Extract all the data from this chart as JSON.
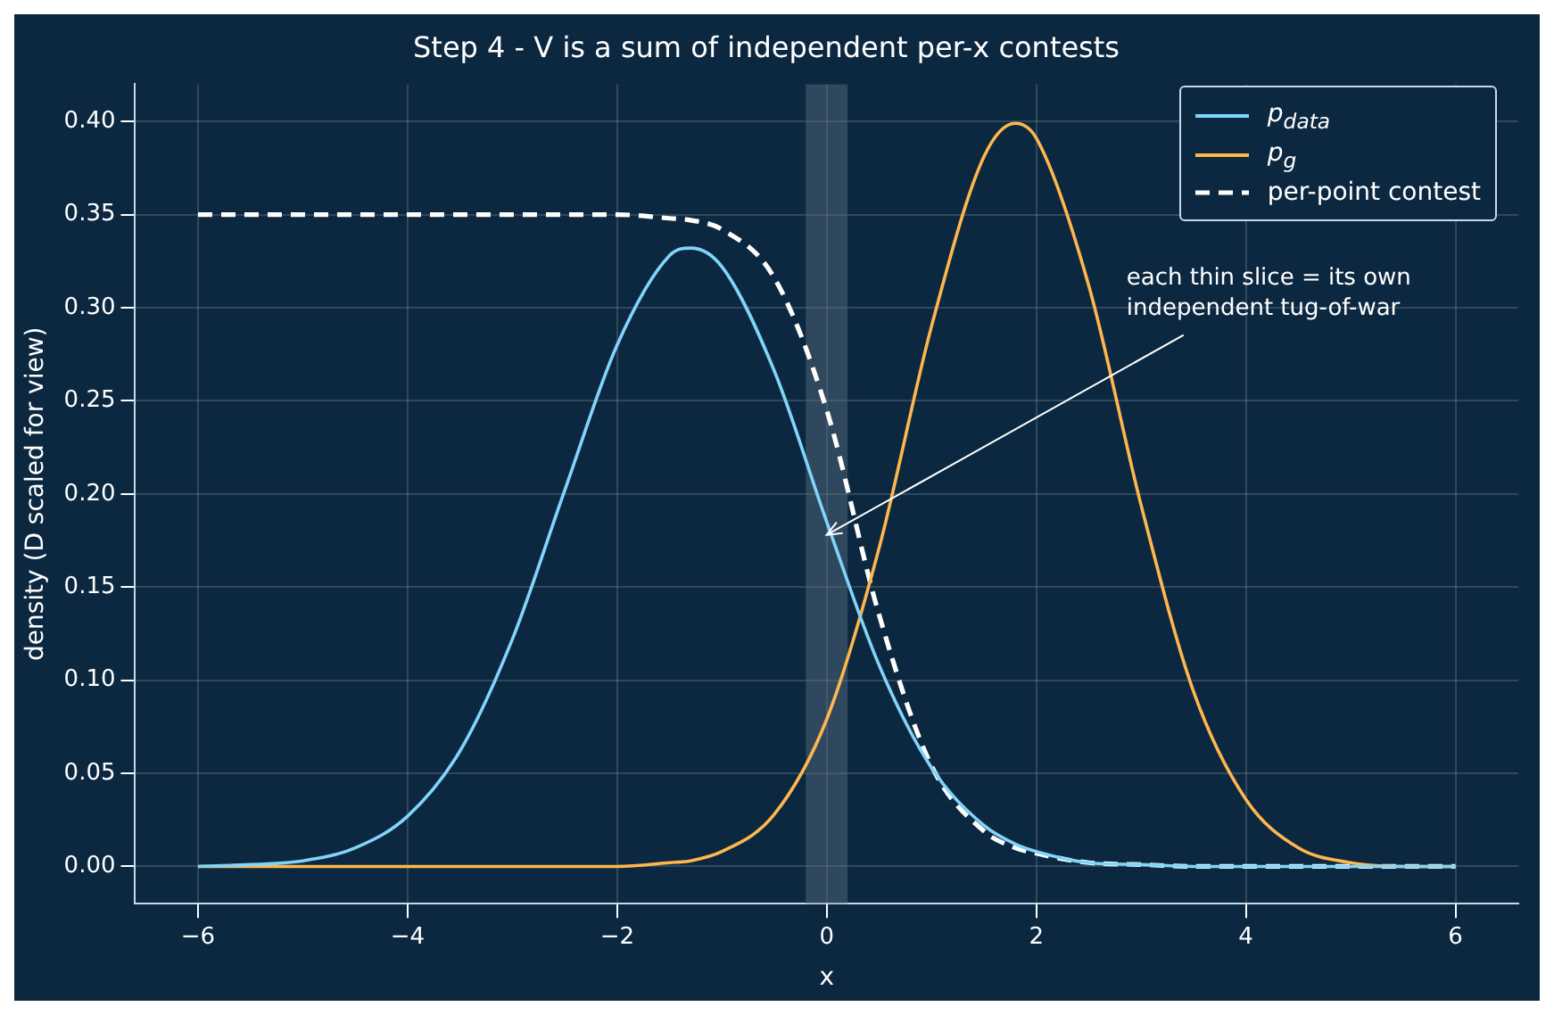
{
  "chart_data": {
    "type": "line",
    "title": "Step 4 - V is a sum of independent per-x contests",
    "xlabel": "x",
    "ylabel": "density (D scaled for view)",
    "x": [
      -6,
      -5.5,
      -5,
      -4.5,
      -4,
      -3.5,
      -3,
      -2.5,
      -2,
      -1.5,
      -1.3,
      -1,
      -0.5,
      0,
      0.5,
      1,
      1.5,
      1.8,
      2,
      2.5,
      3,
      3.5,
      4,
      4.5,
      5,
      5.5,
      6
    ],
    "series": [
      {
        "name": "p$_{data}$",
        "color": "#81d4fa",
        "values": [
          0,
          0.001,
          0.003,
          0.01,
          0.027,
          0.062,
          0.122,
          0.202,
          0.28,
          0.328,
          0.332,
          0.322,
          0.266,
          0.185,
          0.108,
          0.053,
          0.022,
          0.012,
          0.008,
          0.002,
          0.001,
          0,
          0,
          0,
          0,
          0,
          0
        ]
      },
      {
        "name": "p$_{g}$",
        "color": "#ffb74d",
        "values": [
          0,
          0,
          0,
          0,
          0,
          0,
          0,
          0,
          0,
          0.002,
          0.003,
          0.008,
          0.028,
          0.079,
          0.171,
          0.29,
          0.381,
          0.399,
          0.391,
          0.312,
          0.194,
          0.094,
          0.036,
          0.01,
          0.002,
          0,
          0
        ]
      },
      {
        "name": "per-point contest",
        "color": "#ffffff",
        "line_style": "dashed",
        "values": [
          0.35,
          0.35,
          0.35,
          0.35,
          0.35,
          0.35,
          0.35,
          0.35,
          0.35,
          0.348,
          0.347,
          0.342,
          0.316,
          0.245,
          0.135,
          0.054,
          0.019,
          0.01,
          0.007,
          0.002,
          0.001,
          0,
          0,
          0,
          0,
          0,
          0
        ]
      }
    ],
    "xlim": [
      -6.6,
      6.6
    ],
    "xticks": [
      {
        "value": -6,
        "label": "−6"
      },
      {
        "value": -4,
        "label": "−4"
      },
      {
        "value": -2,
        "label": "−2"
      },
      0,
      2,
      4,
      6
    ],
    "ylim": [
      -0.02,
      0.42
    ],
    "yticks": [
      {
        "value": 0,
        "label": "0.00"
      },
      {
        "value": 0.05,
        "label": "0.05"
      },
      {
        "value": 0.1,
        "label": "0.10"
      },
      {
        "value": 0.15,
        "label": "0.15"
      },
      {
        "value": 0.2,
        "label": "0.20"
      },
      {
        "value": 0.25,
        "label": "0.25"
      },
      {
        "value": 0.3,
        "label": "0.30"
      },
      {
        "value": 0.35,
        "label": "0.35"
      },
      {
        "value": 0.4,
        "label": "0.40"
      }
    ],
    "bands": [
      {
        "axis": "x",
        "from": -0.2,
        "to": 0.2,
        "color": "#5a6f80"
      }
    ],
    "annotations": [
      {
        "text": "each thin slice = its own\nindependent tug-of-war",
        "x": 0,
        "y": 0.178
      }
    ],
    "grid": true,
    "legend": "top right",
    "marker": "none"
  }
}
